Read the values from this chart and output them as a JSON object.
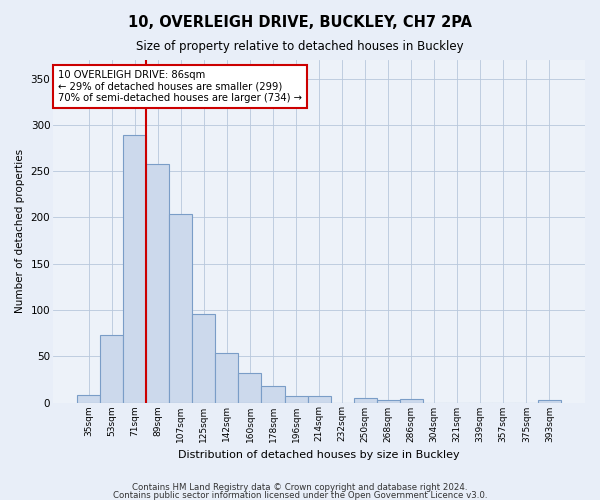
{
  "title1": "10, OVERLEIGH DRIVE, BUCKLEY, CH7 2PA",
  "title2": "Size of property relative to detached houses in Buckley",
  "xlabel": "Distribution of detached houses by size in Buckley",
  "ylabel": "Number of detached properties",
  "bar_labels": [
    "35sqm",
    "53sqm",
    "71sqm",
    "89sqm",
    "107sqm",
    "125sqm",
    "142sqm",
    "160sqm",
    "178sqm",
    "196sqm",
    "214sqm",
    "232sqm",
    "250sqm",
    "268sqm",
    "286sqm",
    "304sqm",
    "321sqm",
    "339sqm",
    "357sqm",
    "375sqm",
    "393sqm"
  ],
  "bar_values": [
    8,
    73,
    289,
    258,
    204,
    96,
    53,
    32,
    18,
    7,
    7,
    0,
    5,
    3,
    4,
    0,
    0,
    0,
    0,
    0,
    3
  ],
  "bar_color": "#ccd9ec",
  "bar_edge_color": "#7a9dc7",
  "vline_x": 2.5,
  "vline_color": "#cc0000",
  "annotation_line1": "10 OVERLEIGH DRIVE: 86sqm",
  "annotation_line2": "← 29% of detached houses are smaller (299)",
  "annotation_line3": "70% of semi-detached houses are larger (734) →",
  "annotation_box_color": "#ffffff",
  "annotation_box_edge": "#cc0000",
  "ylim": [
    0,
    370
  ],
  "yticks": [
    0,
    50,
    100,
    150,
    200,
    250,
    300,
    350
  ],
  "footer1": "Contains HM Land Registry data © Crown copyright and database right 2024.",
  "footer2": "Contains public sector information licensed under the Open Government Licence v3.0.",
  "bg_color": "#e8eef8",
  "plot_bg_color": "#edf2f9"
}
